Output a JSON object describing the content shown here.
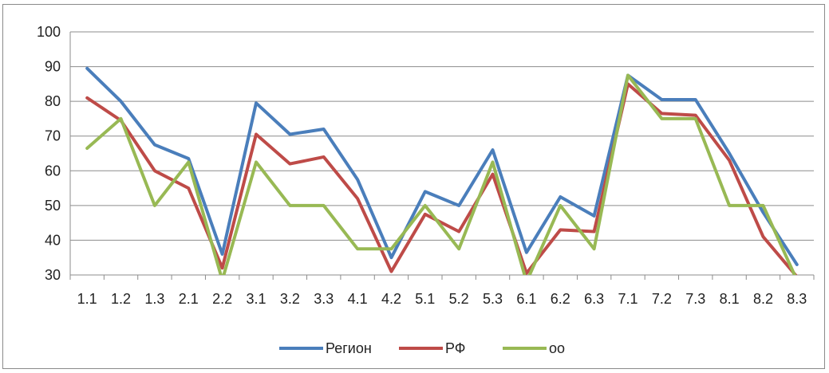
{
  "chart_data": {
    "type": "line",
    "title": "",
    "xlabel": "",
    "ylabel": "",
    "ylim": [
      30,
      100
    ],
    "yticks": [
      30,
      40,
      50,
      60,
      70,
      80,
      90,
      100
    ],
    "grid": true,
    "legend_position": "bottom",
    "categories": [
      "1.1",
      "1.2",
      "1.3",
      "2.1",
      "2.2",
      "3.1",
      "3.2",
      "3.3",
      "4.1",
      "4.2",
      "5.1",
      "5.2",
      "5.3",
      "6.1",
      "6.2",
      "6.3",
      "7.1",
      "7.2",
      "7.3",
      "8.1",
      "8.2",
      "8.3"
    ],
    "series": [
      {
        "name": "Регион",
        "color": "#4a7ebb",
        "values": [
          89.5,
          80,
          67.5,
          63.5,
          36,
          79.5,
          70.5,
          72,
          57.5,
          35,
          54,
          50,
          66,
          36.5,
          52.5,
          47,
          87.5,
          80.5,
          80.5,
          65,
          48,
          33
        ]
      },
      {
        "name": "РФ",
        "color": "#be4b48",
        "values": [
          81,
          74.5,
          60,
          55,
          32,
          70.5,
          62,
          64,
          52,
          31,
          47.5,
          42.5,
          59,
          30.5,
          43,
          42.5,
          85,
          76.5,
          76,
          63,
          41,
          29.5
        ]
      },
      {
        "name": "оо",
        "color": "#98b954",
        "values": [
          66.5,
          75,
          50,
          62.5,
          28.5,
          62.5,
          50,
          50,
          37.5,
          37.5,
          50,
          37.5,
          62.5,
          28,
          50,
          37.5,
          87.5,
          75,
          75,
          50,
          50,
          28.5
        ]
      }
    ]
  }
}
